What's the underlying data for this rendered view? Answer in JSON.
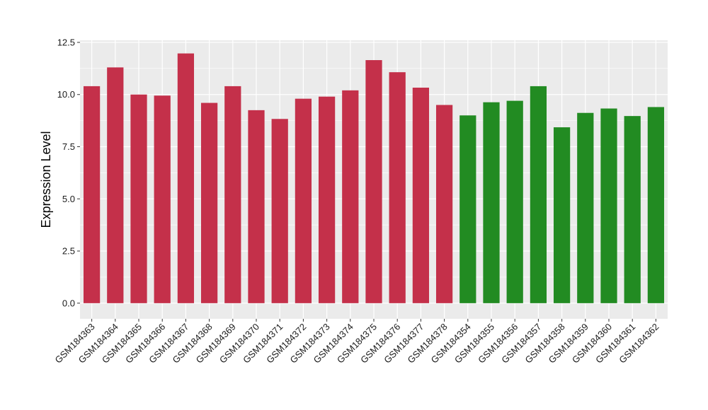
{
  "chart_data": {
    "type": "bar",
    "title": "",
    "xlabel": "",
    "ylabel": "Expression Level",
    "ylim": [
      -0.75,
      12.6
    ],
    "yticks": [
      0.0,
      2.5,
      5.0,
      7.5,
      10.0,
      12.5
    ],
    "ytick_labels": [
      "0.0",
      "2.5",
      "5.0",
      "7.5",
      "10.0",
      "12.5"
    ],
    "grid": true,
    "categories": [
      "GSM184363",
      "GSM184364",
      "GSM184365",
      "GSM184366",
      "GSM184367",
      "GSM184368",
      "GSM184369",
      "GSM184370",
      "GSM184371",
      "GSM184372",
      "GSM184373",
      "GSM184374",
      "GSM184375",
      "GSM184376",
      "GSM184377",
      "GSM184378",
      "GSM184354",
      "GSM184355",
      "GSM184356",
      "GSM184357",
      "GSM184358",
      "GSM184359",
      "GSM184360",
      "GSM184361",
      "GSM184362"
    ],
    "values": [
      10.4,
      11.3,
      10.0,
      9.95,
      11.97,
      9.6,
      10.4,
      9.25,
      8.83,
      9.8,
      9.9,
      10.2,
      11.65,
      11.07,
      10.33,
      9.5,
      9.0,
      9.63,
      9.7,
      10.4,
      8.43,
      9.12,
      9.33,
      8.97,
      9.4
    ],
    "bar_colors": [
      "#c4304a",
      "#c4304a",
      "#c4304a",
      "#c4304a",
      "#c4304a",
      "#c4304a",
      "#c4304a",
      "#c4304a",
      "#c4304a",
      "#c4304a",
      "#c4304a",
      "#c4304a",
      "#c4304a",
      "#c4304a",
      "#c4304a",
      "#c4304a",
      "#228b22",
      "#228b22",
      "#228b22",
      "#228b22",
      "#228b22",
      "#228b22",
      "#228b22",
      "#228b22",
      "#228b22"
    ],
    "panel_background": "#ebebeb",
    "gridline_color": "#ffffff"
  }
}
